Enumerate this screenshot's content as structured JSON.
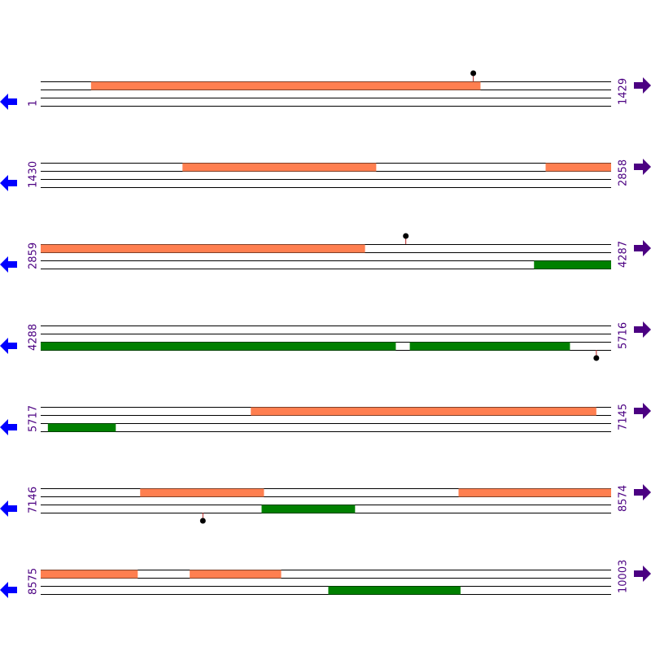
{
  "colors": {
    "forward": "#ff7f50",
    "reverse": "#008000",
    "marker": "#000000",
    "stem": "#b22222"
  },
  "rows": [
    {
      "start": 1,
      "end": 1429,
      "start_label": "1",
      "end_label": "1429",
      "features": [
        {
          "strand": "forward",
          "start": 127,
          "end": 1102
        }
      ],
      "markers": [
        {
          "pos": 1084,
          "side": "up"
        }
      ]
    },
    {
      "start": 1430,
      "end": 2858,
      "start_label": "1430",
      "end_label": "2858",
      "features": [
        {
          "strand": "forward",
          "start": 1785,
          "end": 2270
        },
        {
          "strand": "forward",
          "start": 2694,
          "end": 2858
        }
      ],
      "markers": []
    },
    {
      "start": 2859,
      "end": 4287,
      "start_label": "2859",
      "end_label": "4287",
      "features": [
        {
          "strand": "forward",
          "start": 2859,
          "end": 3671
        },
        {
          "strand": "reverse",
          "start": 4094,
          "end": 4287
        }
      ],
      "markers": [
        {
          "pos": 3773,
          "side": "up"
        }
      ]
    },
    {
      "start": 4288,
      "end": 5716,
      "start_label": "4288",
      "end_label": "5716",
      "features": [
        {
          "strand": "reverse",
          "start": 4288,
          "end": 5177
        },
        {
          "strand": "reverse",
          "start": 5212,
          "end": 5613
        }
      ],
      "markers": [
        {
          "pos": 5679,
          "side": "down"
        }
      ]
    },
    {
      "start": 5717,
      "end": 7145,
      "start_label": "5717",
      "end_label": "7145",
      "features": [
        {
          "strand": "forward",
          "start": 6243,
          "end": 7108
        },
        {
          "strand": "reverse",
          "start": 5735,
          "end": 5905
        }
      ],
      "markers": []
    },
    {
      "start": 7146,
      "end": 8574,
      "start_label": "7146",
      "end_label": "8574",
      "features": [
        {
          "strand": "forward",
          "start": 7395,
          "end": 7705
        },
        {
          "strand": "forward",
          "start": 8192,
          "end": 8574
        },
        {
          "strand": "reverse",
          "start": 7699,
          "end": 7933
        }
      ],
      "markers": [
        {
          "pos": 7552,
          "side": "down"
        }
      ]
    },
    {
      "start": 8575,
      "end": 10003,
      "start_label": "8575",
      "end_label": "10003",
      "features": [
        {
          "strand": "forward",
          "start": 8575,
          "end": 8818
        },
        {
          "strand": "forward",
          "start": 8948,
          "end": 9177
        },
        {
          "strand": "reverse",
          "start": 9295,
          "end": 9626
        }
      ],
      "markers": []
    }
  ]
}
